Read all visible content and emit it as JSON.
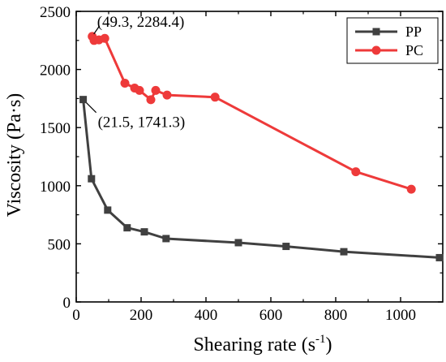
{
  "chart_data": {
    "type": "line",
    "title": "",
    "xlabel": "Shearing rate (s",
    "xlabel_sup": "-1",
    "xlabel_close": ")",
    "ylabel": "Viscosity (Pa·s)",
    "xlim": [
      0,
      1130
    ],
    "ylim": [
      0,
      2500
    ],
    "xticks": [
      0,
      200,
      400,
      600,
      800,
      1000
    ],
    "yticks": [
      0,
      500,
      1000,
      1500,
      2000,
      2500
    ],
    "grid": false,
    "legend_position": "top-right",
    "series": [
      {
        "name": "PP",
        "color": "#404040",
        "marker": "square",
        "points": [
          [
            21.5,
            1741.3
          ],
          [
            47,
            1060
          ],
          [
            97,
            790
          ],
          [
            157,
            638
          ],
          [
            210,
            603
          ],
          [
            277,
            545
          ],
          [
            500,
            510
          ],
          [
            647,
            478
          ],
          [
            825,
            432
          ],
          [
            1120,
            381
          ]
        ]
      },
      {
        "name": "PC",
        "color": "#ee3a3a",
        "marker": "circle",
        "points": [
          [
            49.3,
            2284.4
          ],
          [
            55,
            2250
          ],
          [
            70,
            2255
          ],
          [
            88,
            2268
          ],
          [
            150,
            1882
          ],
          [
            180,
            1840
          ],
          [
            195,
            1820
          ],
          [
            230,
            1740
          ],
          [
            245,
            1820
          ],
          [
            280,
            1780
          ],
          [
            428,
            1762
          ],
          [
            862,
            1120
          ],
          [
            1033,
            970
          ]
        ]
      }
    ],
    "annotations": [
      {
        "text": "(49.3, 2284.4)",
        "x": 49.3,
        "y": 2284.4
      },
      {
        "text": "(21.5, 1741.3)",
        "x": 21.5,
        "y": 1741.3
      }
    ]
  }
}
